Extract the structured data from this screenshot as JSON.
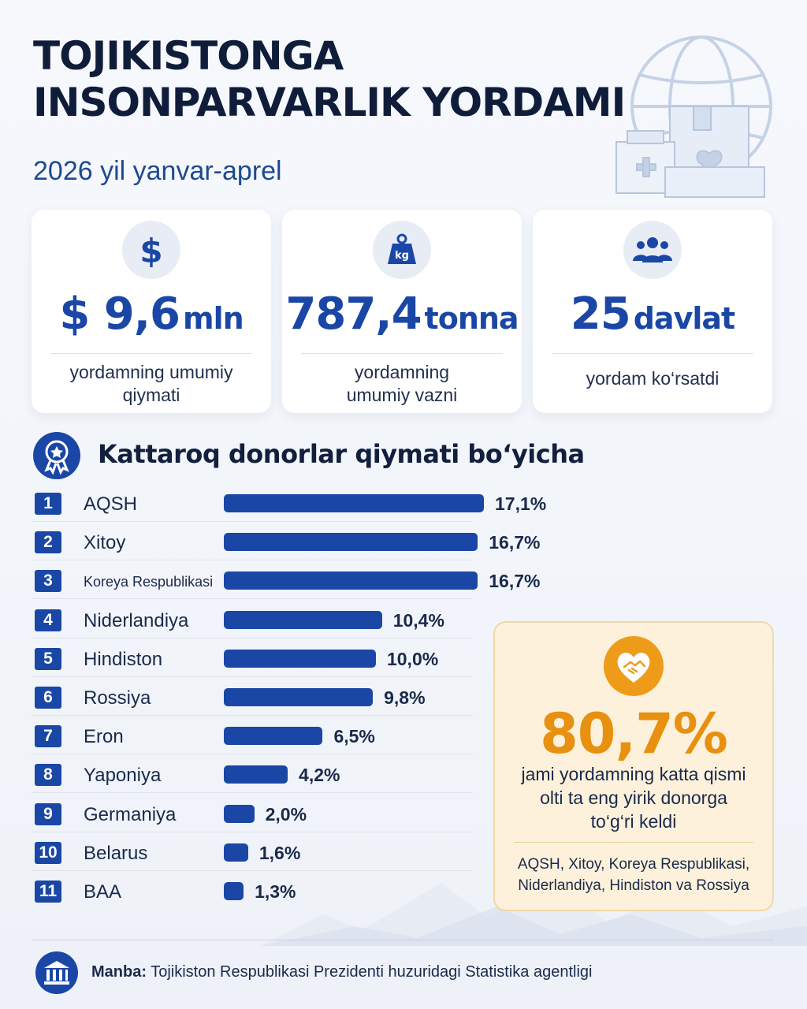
{
  "header": {
    "title_line1": "TOJIKISTONGA",
    "title_line2": "INSONPARVARLIK YORDAMI",
    "subtitle": "2026 yil yanvar-aprel"
  },
  "stats": [
    {
      "icon": "dollar-icon",
      "value": "$ 9,6",
      "unit": "mln",
      "desc_line1": "yordamning umumiy",
      "desc_line2": "qiymati"
    },
    {
      "icon": "weight-kg-icon",
      "icon_text": "kg",
      "value": "787,4",
      "unit": "tonna",
      "desc_line1": "yordamning",
      "desc_line2": "umumiy vazni"
    },
    {
      "icon": "people-group-icon",
      "value": "25",
      "unit": "davlat",
      "desc_line1": "yordam ko‘rsatdi",
      "desc_line2": ""
    }
  ],
  "section": {
    "icon": "award-badge-icon",
    "title": "Kattaroq donorlar qiymati bo‘yicha"
  },
  "chart_data": {
    "type": "bar",
    "orientation": "horizontal",
    "categories": [
      "AQSH",
      "Xitoy",
      "Koreya Respublikasi",
      "Niderlandiya",
      "Hindiston",
      "Rossiya",
      "Eron",
      "Yaponiya",
      "Germaniya",
      "Belarus",
      "BAA"
    ],
    "ranks": [
      "1",
      "2",
      "3",
      "4",
      "5",
      "6",
      "7",
      "8",
      "9",
      "10",
      "11"
    ],
    "values": [
      17.1,
      16.7,
      16.7,
      10.4,
      10.0,
      9.8,
      6.5,
      4.2,
      2.0,
      1.6,
      1.3
    ],
    "value_labels": [
      "17,1%",
      "16,7%",
      "16,7%",
      "10,4%",
      "10,0%",
      "9,8%",
      "6,5%",
      "4,2%",
      "2,0%",
      "1,6%",
      "1,3%"
    ],
    "unit": "%",
    "bar_color": "#1a47a6",
    "grid": false
  },
  "callout": {
    "icon": "heart-handshake-icon",
    "percent": "80,7%",
    "desc_line1": "jami yordamning katta qismi",
    "desc_line2": "olti ta eng yirik donorga",
    "desc_line3": "to‘g‘ri keldi",
    "list_line1": "AQSH, Xitoy, Koreya Respublikasi,",
    "list_line2": "Niderlandiya, Hindiston va Rossiya",
    "accent_color": "#e8900f"
  },
  "footer": {
    "icon": "government-building-icon",
    "source_label": "Manba:",
    "source_text": " Tojikiston Respublikasi Prezidenti huzuridagi Statistika agentligi"
  },
  "colors": {
    "primary": "#1a47a6",
    "title": "#0f1d3a",
    "accent": "#e8900f",
    "callout_bg": "#fdf1dc"
  }
}
